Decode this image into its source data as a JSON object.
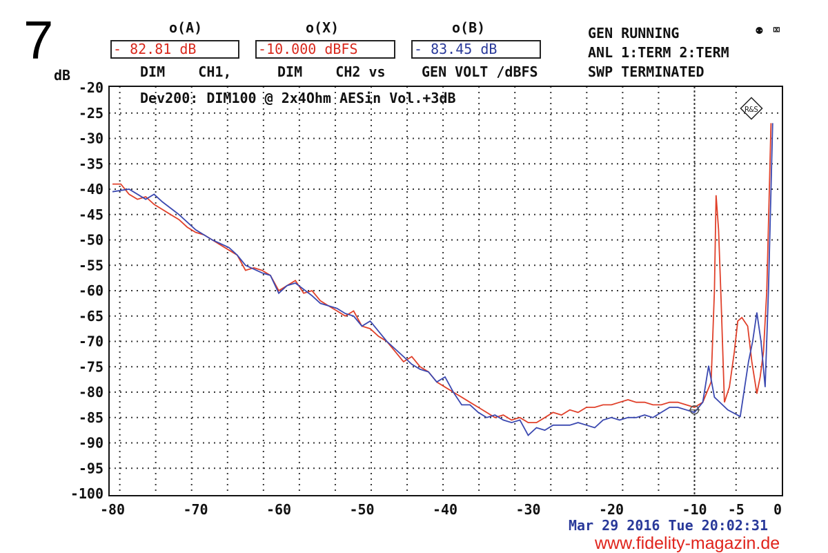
{
  "figure_number": "7",
  "header": {
    "readings": [
      {
        "label": "o(A)",
        "value": "- 82.81 dB",
        "color": "#d8281c"
      },
      {
        "label": "o(X)",
        "value": "-10.000 dBFS",
        "color": "#d8281c"
      },
      {
        "label": "o(B)",
        "value": "- 83.45 dB",
        "color": "#2a3a9a"
      }
    ],
    "sublabels": [
      "DIM    CH1,",
      "DIM    CH2 vs",
      "GEN VOLT /dBFS"
    ],
    "status": [
      "GEN RUNNING",
      "ANL 1:TERM 2:TERM",
      "SWP TERMINATED"
    ],
    "status_icons": [
      "gen-icon",
      "speaker-muted-icon"
    ]
  },
  "footer": {
    "timestamp": "Mar 29 2016 Tue 20:02:31",
    "watermark": "www.fidelity-magazin.de"
  },
  "logo": "R&S",
  "chart_data": {
    "type": "line",
    "title": "Dev200: DIM100 @ 2x4Ohm AESin Vol.+3dB",
    "ylabel": "dB",
    "xlabel": "",
    "xlim": [
      -80,
      0
    ],
    "ylim": [
      -100,
      -20
    ],
    "xticks": [
      -80,
      -70,
      -60,
      -50,
      -40,
      -30,
      -20,
      -10,
      -5,
      0
    ],
    "yticks": [
      -20,
      -25,
      -30,
      -35,
      -40,
      -45,
      -50,
      -55,
      -60,
      -65,
      -70,
      -75,
      -80,
      -85,
      -90,
      -95,
      -100
    ],
    "grid": true,
    "cursor": {
      "x": -10,
      "y": -83.5
    },
    "series": [
      {
        "name": "CH1",
        "color": "#e0402a",
        "x": [
          -80,
          -79,
          -78,
          -77,
          -76,
          -75,
          -74,
          -73,
          -72,
          -71,
          -70,
          -69,
          -68,
          -67,
          -66,
          -65,
          -64,
          -63,
          -62,
          -61,
          -60,
          -59,
          -58,
          -57,
          -56,
          -55,
          -54,
          -53,
          -52,
          -51,
          -50,
          -49,
          -48,
          -47,
          -46,
          -45,
          -44,
          -43,
          -42,
          -41,
          -40,
          -39,
          -38,
          -37,
          -36,
          -35,
          -34,
          -33,
          -32,
          -31,
          -30,
          -29,
          -28,
          -27,
          -26,
          -25,
          -24,
          -23,
          -22,
          -21,
          -20,
          -19,
          -18,
          -17,
          -16,
          -15,
          -14,
          -13,
          -12,
          -11,
          -10,
          -9,
          -8,
          -7.6,
          -7.4,
          -7.1,
          -6.8,
          -6.4,
          -5.8,
          -5.2,
          -4.8,
          -4.3,
          -3.6,
          -3.1,
          -2.5,
          -2.1,
          -1.7,
          -1.3,
          -1,
          -0.8
        ],
        "y": [
          -39,
          -39,
          -41,
          -42,
          -41.5,
          -43,
          -44,
          -45,
          -46,
          -47.5,
          -48.5,
          -49,
          -50,
          -51,
          -52,
          -53,
          -56,
          -55.5,
          -56,
          -57,
          -60,
          -59,
          -58,
          -60.5,
          -60,
          -62,
          -63,
          -64,
          -65,
          -64,
          -67,
          -67.5,
          -69,
          -70,
          -72,
          -74,
          -73,
          -75,
          -76,
          -78,
          -79,
          -80,
          -81,
          -82,
          -83,
          -84,
          -85,
          -84.5,
          -85.5,
          -85,
          -86,
          -86,
          -85,
          -84,
          -84.5,
          -83.5,
          -84,
          -83,
          -83,
          -82.5,
          -82.5,
          -82,
          -81.5,
          -82,
          -82,
          -82.5,
          -82.5,
          -82,
          -82,
          -82.5,
          -83,
          -82,
          -78,
          -60,
          -41.2,
          -48,
          -62,
          -82,
          -79,
          -72,
          -66,
          -65.3,
          -67,
          -74,
          -80.3,
          -77,
          -72,
          -60,
          -40,
          -27
        ]
      },
      {
        "name": "CH2",
        "color": "#3a48b0",
        "x": [
          -80,
          -78,
          -76,
          -75,
          -74,
          -72,
          -70,
          -68,
          -66,
          -65,
          -64,
          -62,
          -61,
          -60,
          -59,
          -58,
          -56,
          -55,
          -53,
          -52,
          -51,
          -50,
          -49,
          -48,
          -47,
          -46,
          -45,
          -44,
          -43,
          -42,
          -41,
          -40,
          -39,
          -38,
          -37,
          -36,
          -35,
          -34,
          -33,
          -32,
          -31,
          -30,
          -29,
          -28,
          -27,
          -26,
          -25,
          -24,
          -23,
          -22,
          -21,
          -20,
          -19,
          -18,
          -17,
          -16,
          -15,
          -14,
          -13,
          -12,
          -11,
          -10,
          -9,
          -8.3,
          -7.6,
          -6,
          -4.5,
          -3.5,
          -3,
          -2.5,
          -2,
          -1.5,
          -1.1,
          -0.6
        ],
        "y": [
          -40.5,
          -40,
          -42,
          -41,
          -42.5,
          -45,
          -48,
          -50,
          -51.5,
          -53,
          -55,
          -56.5,
          -57,
          -60.5,
          -59,
          -58.5,
          -61,
          -62.5,
          -63.5,
          -64.5,
          -65,
          -67,
          -66,
          -68,
          -70,
          -71.5,
          -73,
          -74.5,
          -75.5,
          -76,
          -78,
          -77,
          -80,
          -82.5,
          -82.5,
          -84,
          -85,
          -84.5,
          -85.5,
          -86,
          -85.5,
          -88.5,
          -87,
          -87.5,
          -86.5,
          -86.5,
          -86.5,
          -86,
          -86.5,
          -87,
          -85.5,
          -85,
          -85.5,
          -85,
          -85,
          -84.5,
          -85,
          -84,
          -83,
          -83,
          -83.5,
          -84,
          -82,
          -74.8,
          -81,
          -83.5,
          -84.8,
          -74,
          -70,
          -64.3,
          -70,
          -79,
          -60,
          -27
        ]
      }
    ]
  }
}
